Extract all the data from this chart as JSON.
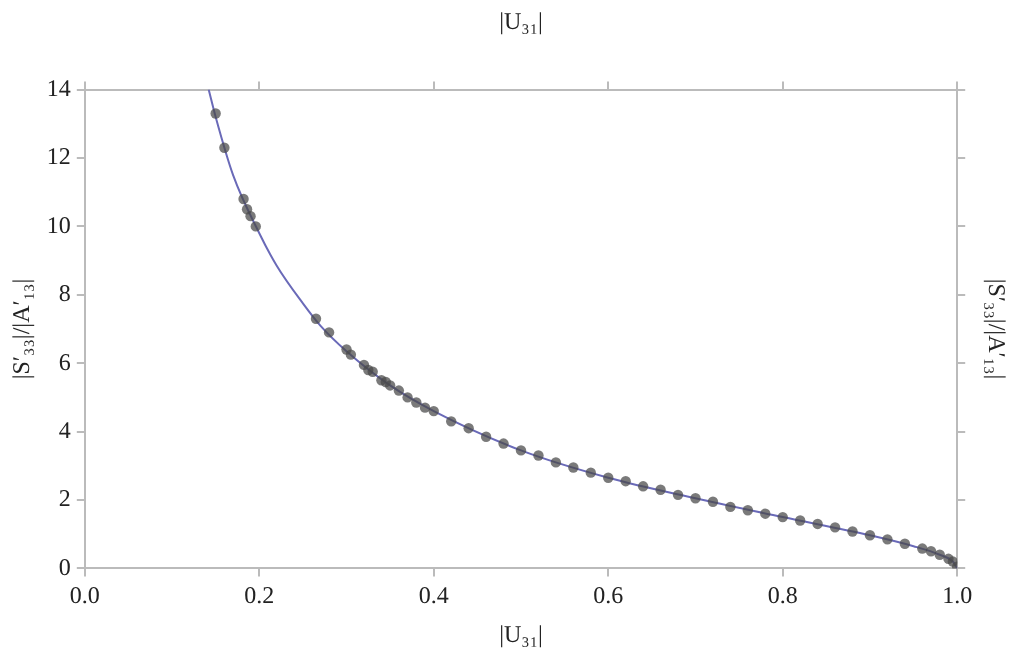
{
  "chart_data": {
    "type": "scatter",
    "xlabel": "|U₃₁|",
    "x2label": "|U₃₁|",
    "ylabel": "|S′₃₃|/|A′₁₃|",
    "y2label": "|S′₃₃|/|A′₁₃|",
    "xlim": [
      0,
      1.0
    ],
    "xticks": [
      {
        "value": 0,
        "label": "0.0"
      },
      {
        "value": 0.2,
        "label": "0.2"
      },
      {
        "value": 0.4,
        "label": "0.4"
      },
      {
        "value": 0.6,
        "label": "0.6"
      },
      {
        "value": 0.8,
        "label": "0.8"
      },
      {
        "value": 1.0,
        "label": "1.0"
      }
    ],
    "ylim": [
      0,
      14
    ],
    "yticks": [
      0,
      2,
      4,
      6,
      8,
      10,
      12,
      14
    ],
    "grid": false,
    "series": [
      {
        "type": "line",
        "marker": "none",
        "color": "#6a6ab8",
        "x": [
          0.142,
          0.15,
          0.17,
          0.2,
          0.22,
          0.25,
          0.27,
          0.3,
          0.35,
          0.4,
          0.5,
          0.6,
          0.7,
          0.8,
          0.9,
          0.95,
          0.98,
          0.995,
          1.0
        ],
        "values": [
          14.0,
          13.2,
          11.5,
          9.8,
          8.85,
          7.75,
          7.1,
          6.35,
          5.35,
          4.6,
          3.45,
          2.65,
          2.05,
          1.5,
          0.97,
          0.65,
          0.4,
          0.2,
          0
        ]
      },
      {
        "type": "scatter",
        "marker": "circle",
        "color": "#4a4a4a",
        "x": [
          0.15,
          0.16,
          0.182,
          0.186,
          0.19,
          0.196,
          0.265,
          0.278,
          0.28,
          0.3,
          0.305,
          0.32,
          0.325,
          0.33,
          0.34,
          0.345,
          0.35,
          0.36,
          0.37,
          0.38,
          0.39,
          0.4,
          0.42,
          0.44,
          0.46,
          0.48,
          0.5,
          0.52,
          0.54,
          0.56,
          0.58,
          0.6,
          0.62,
          0.64,
          0.66,
          0.68,
          0.7,
          0.72,
          0.74,
          0.76,
          0.78,
          0.8,
          0.82,
          0.84,
          0.86,
          0.88,
          0.9,
          0.92,
          0.94,
          0.96,
          0.97,
          0.98,
          0.99,
          0.995,
          1.0
        ],
        "values": [
          13.3,
          12.3,
          10.8,
          10.5,
          10.3,
          10.0,
          7.3,
          null,
          6.9,
          6.4,
          6.25,
          5.95,
          5.8,
          5.75,
          5.5,
          5.45,
          5.35,
          5.2,
          5.0,
          4.85,
          4.7,
          4.6,
          4.3,
          4.1,
          3.85,
          3.65,
          3.45,
          3.3,
          3.1,
          2.95,
          2.8,
          2.65,
          2.55,
          2.4,
          2.3,
          2.15,
          2.05,
          1.95,
          1.8,
          1.7,
          1.6,
          1.5,
          1.4,
          1.3,
          1.2,
          1.08,
          0.97,
          0.85,
          0.72,
          0.58,
          0.5,
          0.4,
          0.28,
          0.2,
          0.05
        ]
      }
    ]
  }
}
